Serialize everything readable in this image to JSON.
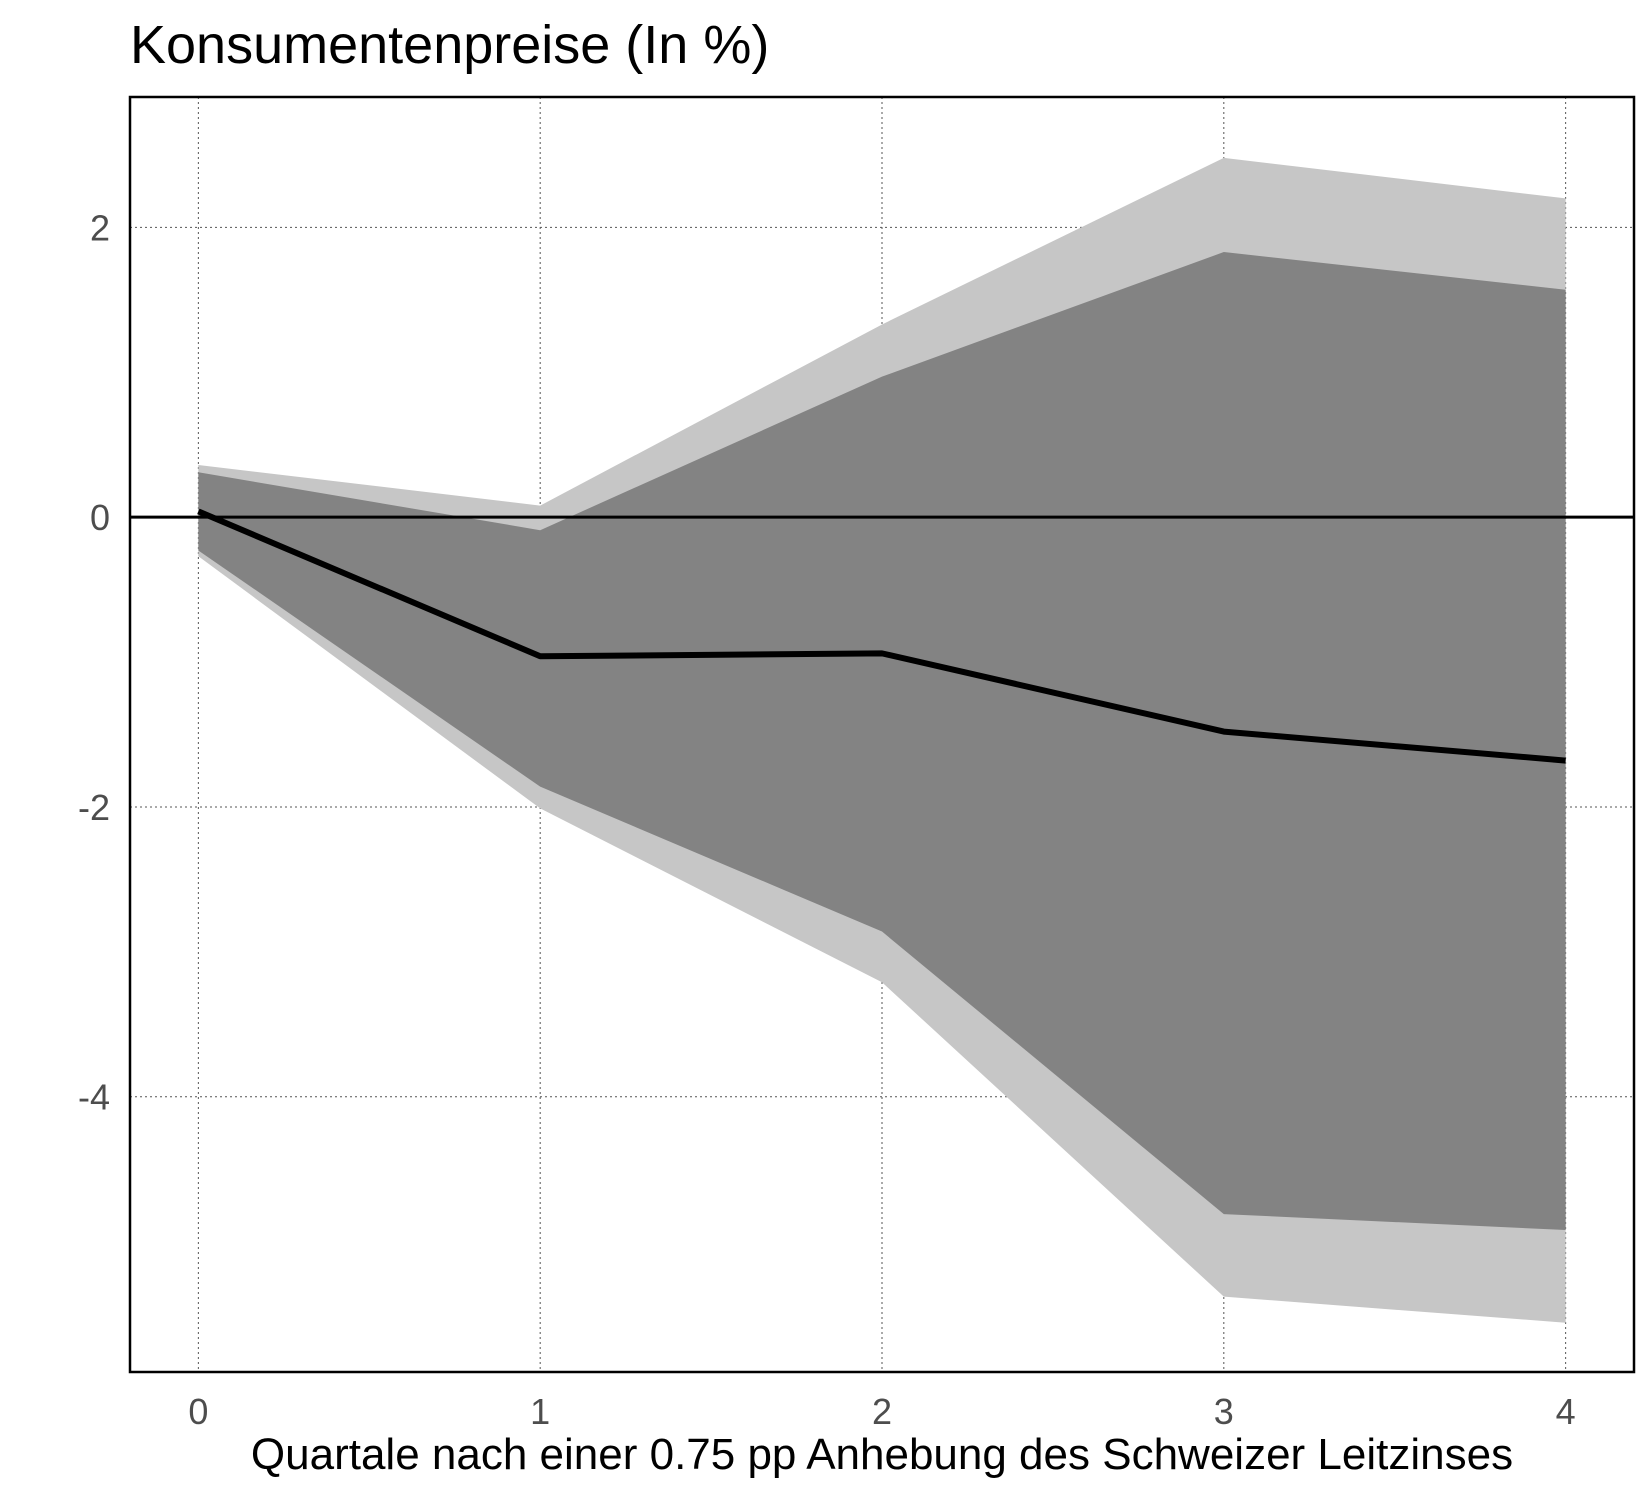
{
  "chart_data": {
    "type": "area",
    "title": "Konsumentenpreise (In %)",
    "xlabel": "Quartale nach einer 0.75 pp Anhebung des Schweizer Leitzinses",
    "ylabel": "",
    "x": [
      0,
      1,
      2,
      3,
      4
    ],
    "x_tick_labels": [
      "0",
      "1",
      "2",
      "3",
      "4"
    ],
    "y_ticks": [
      2,
      0,
      -2,
      -4
    ],
    "y_tick_labels": [
      "2",
      "0",
      "-2",
      "-4"
    ],
    "xlim": [
      -0.2,
      4.2
    ],
    "ylim": [
      -5.9,
      2.9
    ],
    "grid": true,
    "zero_line": true,
    "colors": {
      "outer_band": "#c6c6c6",
      "inner_band": "#838383",
      "line": "#000000"
    },
    "series": [
      {
        "role": "outer_band_upper",
        "values": [
          0.36,
          0.08,
          1.33,
          2.48,
          2.2
        ]
      },
      {
        "role": "outer_band_lower",
        "values": [
          -0.27,
          -2.01,
          -3.21,
          -5.38,
          -5.56
        ]
      },
      {
        "role": "inner_band_upper",
        "values": [
          0.31,
          -0.09,
          0.97,
          1.83,
          1.57
        ]
      },
      {
        "role": "inner_band_lower",
        "values": [
          -0.23,
          -1.86,
          -2.86,
          -4.81,
          -4.92
        ]
      },
      {
        "role": "median",
        "values": [
          0.04,
          -0.96,
          -0.94,
          -1.48,
          -1.68
        ]
      }
    ]
  }
}
